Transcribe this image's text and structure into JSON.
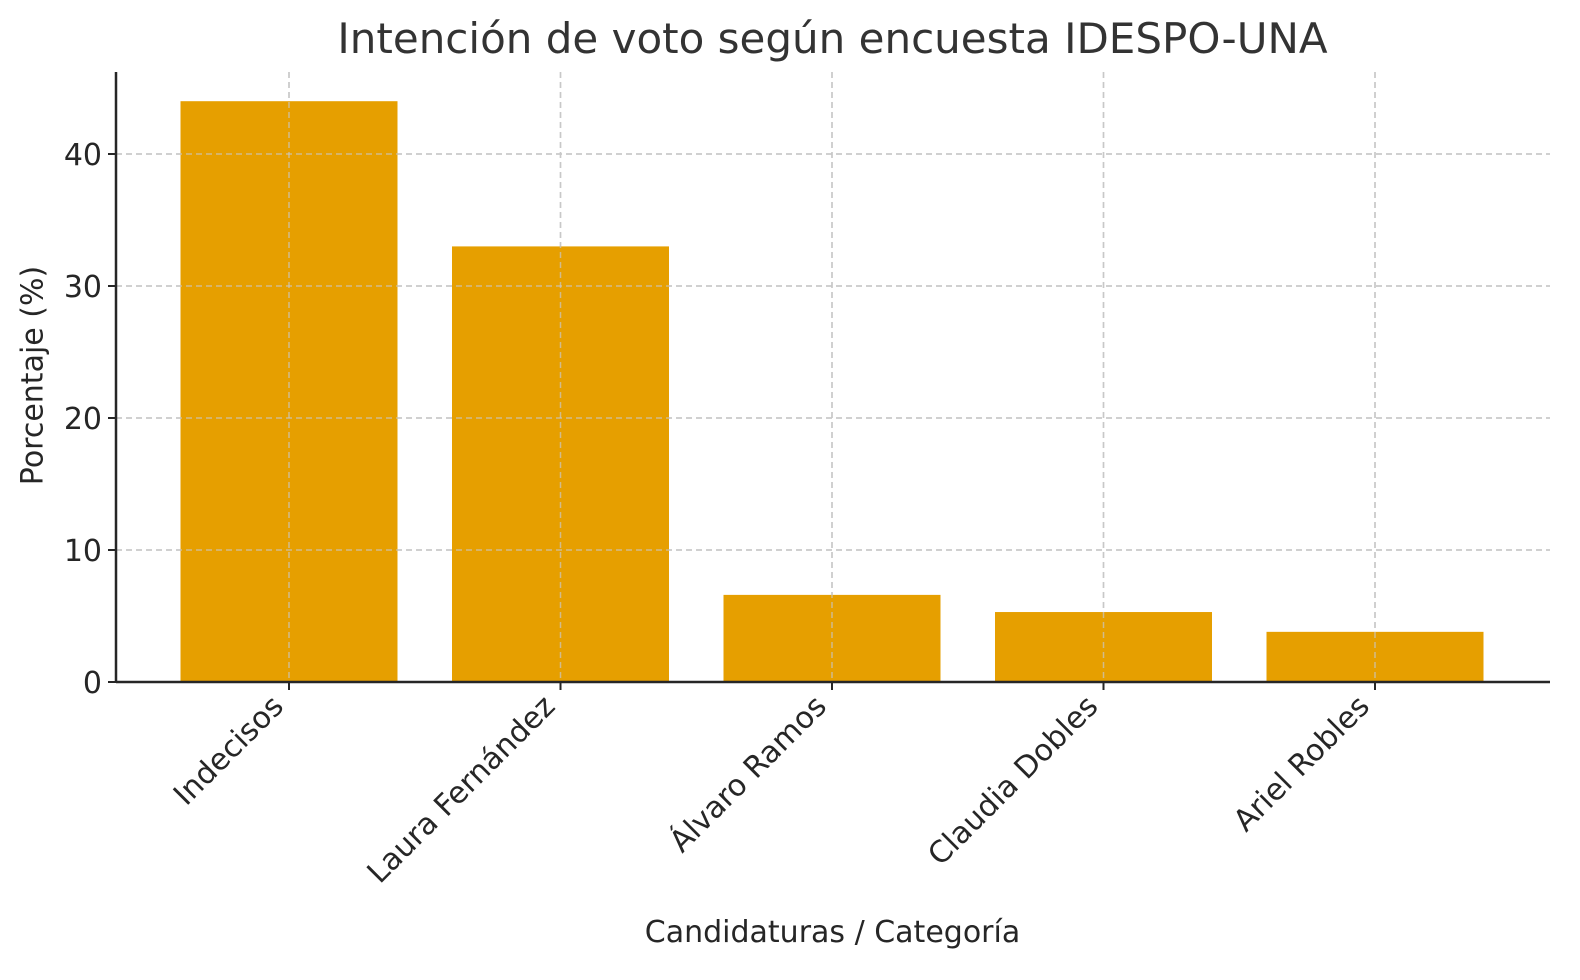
{
  "chart_data": {
    "type": "bar",
    "title": "Intención de voto según encuesta IDESPO-UNA",
    "xlabel": "Candidaturas / Categoría",
    "ylabel": "Porcentaje (%)",
    "categories": [
      "Indecisos",
      "Laura Fernández",
      "Álvaro Ramos",
      "Claudia Dobles",
      "Ariel Robles"
    ],
    "values": [
      44,
      33,
      6.6,
      5.3,
      3.8
    ],
    "ylim": [
      0,
      46
    ],
    "yticks": [
      0,
      10,
      20,
      30,
      40
    ],
    "grid": true,
    "bar_color": "#E69F00"
  }
}
